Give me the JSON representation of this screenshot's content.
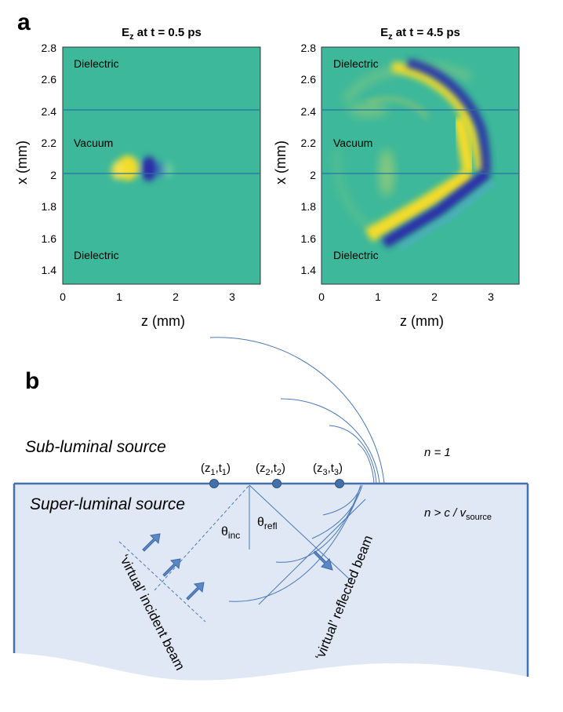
{
  "panel_a": {
    "label": "a",
    "plots": [
      {
        "title_base": "E",
        "title_sub": "z",
        "title_rest": " at t = 0.5 ps",
        "xlabel": "z (mm)",
        "ylabel": "x (mm)",
        "xlim": [
          0,
          3.5
        ],
        "ylim": [
          1.3,
          2.8
        ],
        "xticks": [
          "0",
          "1",
          "2",
          "3"
        ],
        "yticks": [
          "1.4",
          "1.6",
          "1.8",
          "2",
          "2.2",
          "2.4",
          "2.6",
          "2.8"
        ],
        "region_labels": {
          "top": "Dielectric",
          "middle": "Vacuum",
          "bottom": "Dielectric"
        },
        "interfaces_x_mm": [
          2.0,
          2.4
        ]
      },
      {
        "title_base": "E",
        "title_sub": "z",
        "title_rest": " at t = 4.5 ps",
        "xlabel": "z (mm)",
        "ylabel": "x (mm)",
        "xlim": [
          0,
          3.5
        ],
        "ylim": [
          1.3,
          2.8
        ],
        "xticks": [
          "0",
          "1",
          "2",
          "3"
        ],
        "yticks": [
          "1.4",
          "1.6",
          "1.8",
          "2",
          "2.2",
          "2.4",
          "2.6",
          "2.8"
        ],
        "region_labels": {
          "top": "Dielectric",
          "middle": "Vacuum",
          "bottom": "Dielectric"
        },
        "interfaces_x_mm": [
          2.0,
          2.4
        ]
      }
    ]
  },
  "panel_b": {
    "label": "b",
    "sub_luminal": "Sub-luminal source",
    "super_luminal": "Super-luminal source",
    "n1": "n = 1",
    "n2_main": "n > c / v",
    "n2_sub": "source",
    "points": [
      {
        "z": "z",
        "zsub": "1",
        "t": "t",
        "tsub": "1"
      },
      {
        "z": "z",
        "zsub": "2",
        "t": "t",
        "tsub": "2"
      },
      {
        "z": "z",
        "zsub": "3",
        "t": "t",
        "tsub": "3"
      }
    ],
    "theta_inc": {
      "sym": "θ",
      "sub": "inc"
    },
    "theta_refl": {
      "sym": "θ",
      "sub": "refl"
    },
    "incident_beam": "‘virtual’ incident beam",
    "reflected_beam": "‘virtual’ reflected beam"
  },
  "colors": {
    "field_bg": "#3db89a",
    "yellow": "#f3dc2a",
    "blue": "#2a2ea8",
    "region_fill": "#dfe8f4",
    "region_edge": "#4472a8",
    "arrow": "#5b87c4",
    "dot": "#4472a8"
  }
}
